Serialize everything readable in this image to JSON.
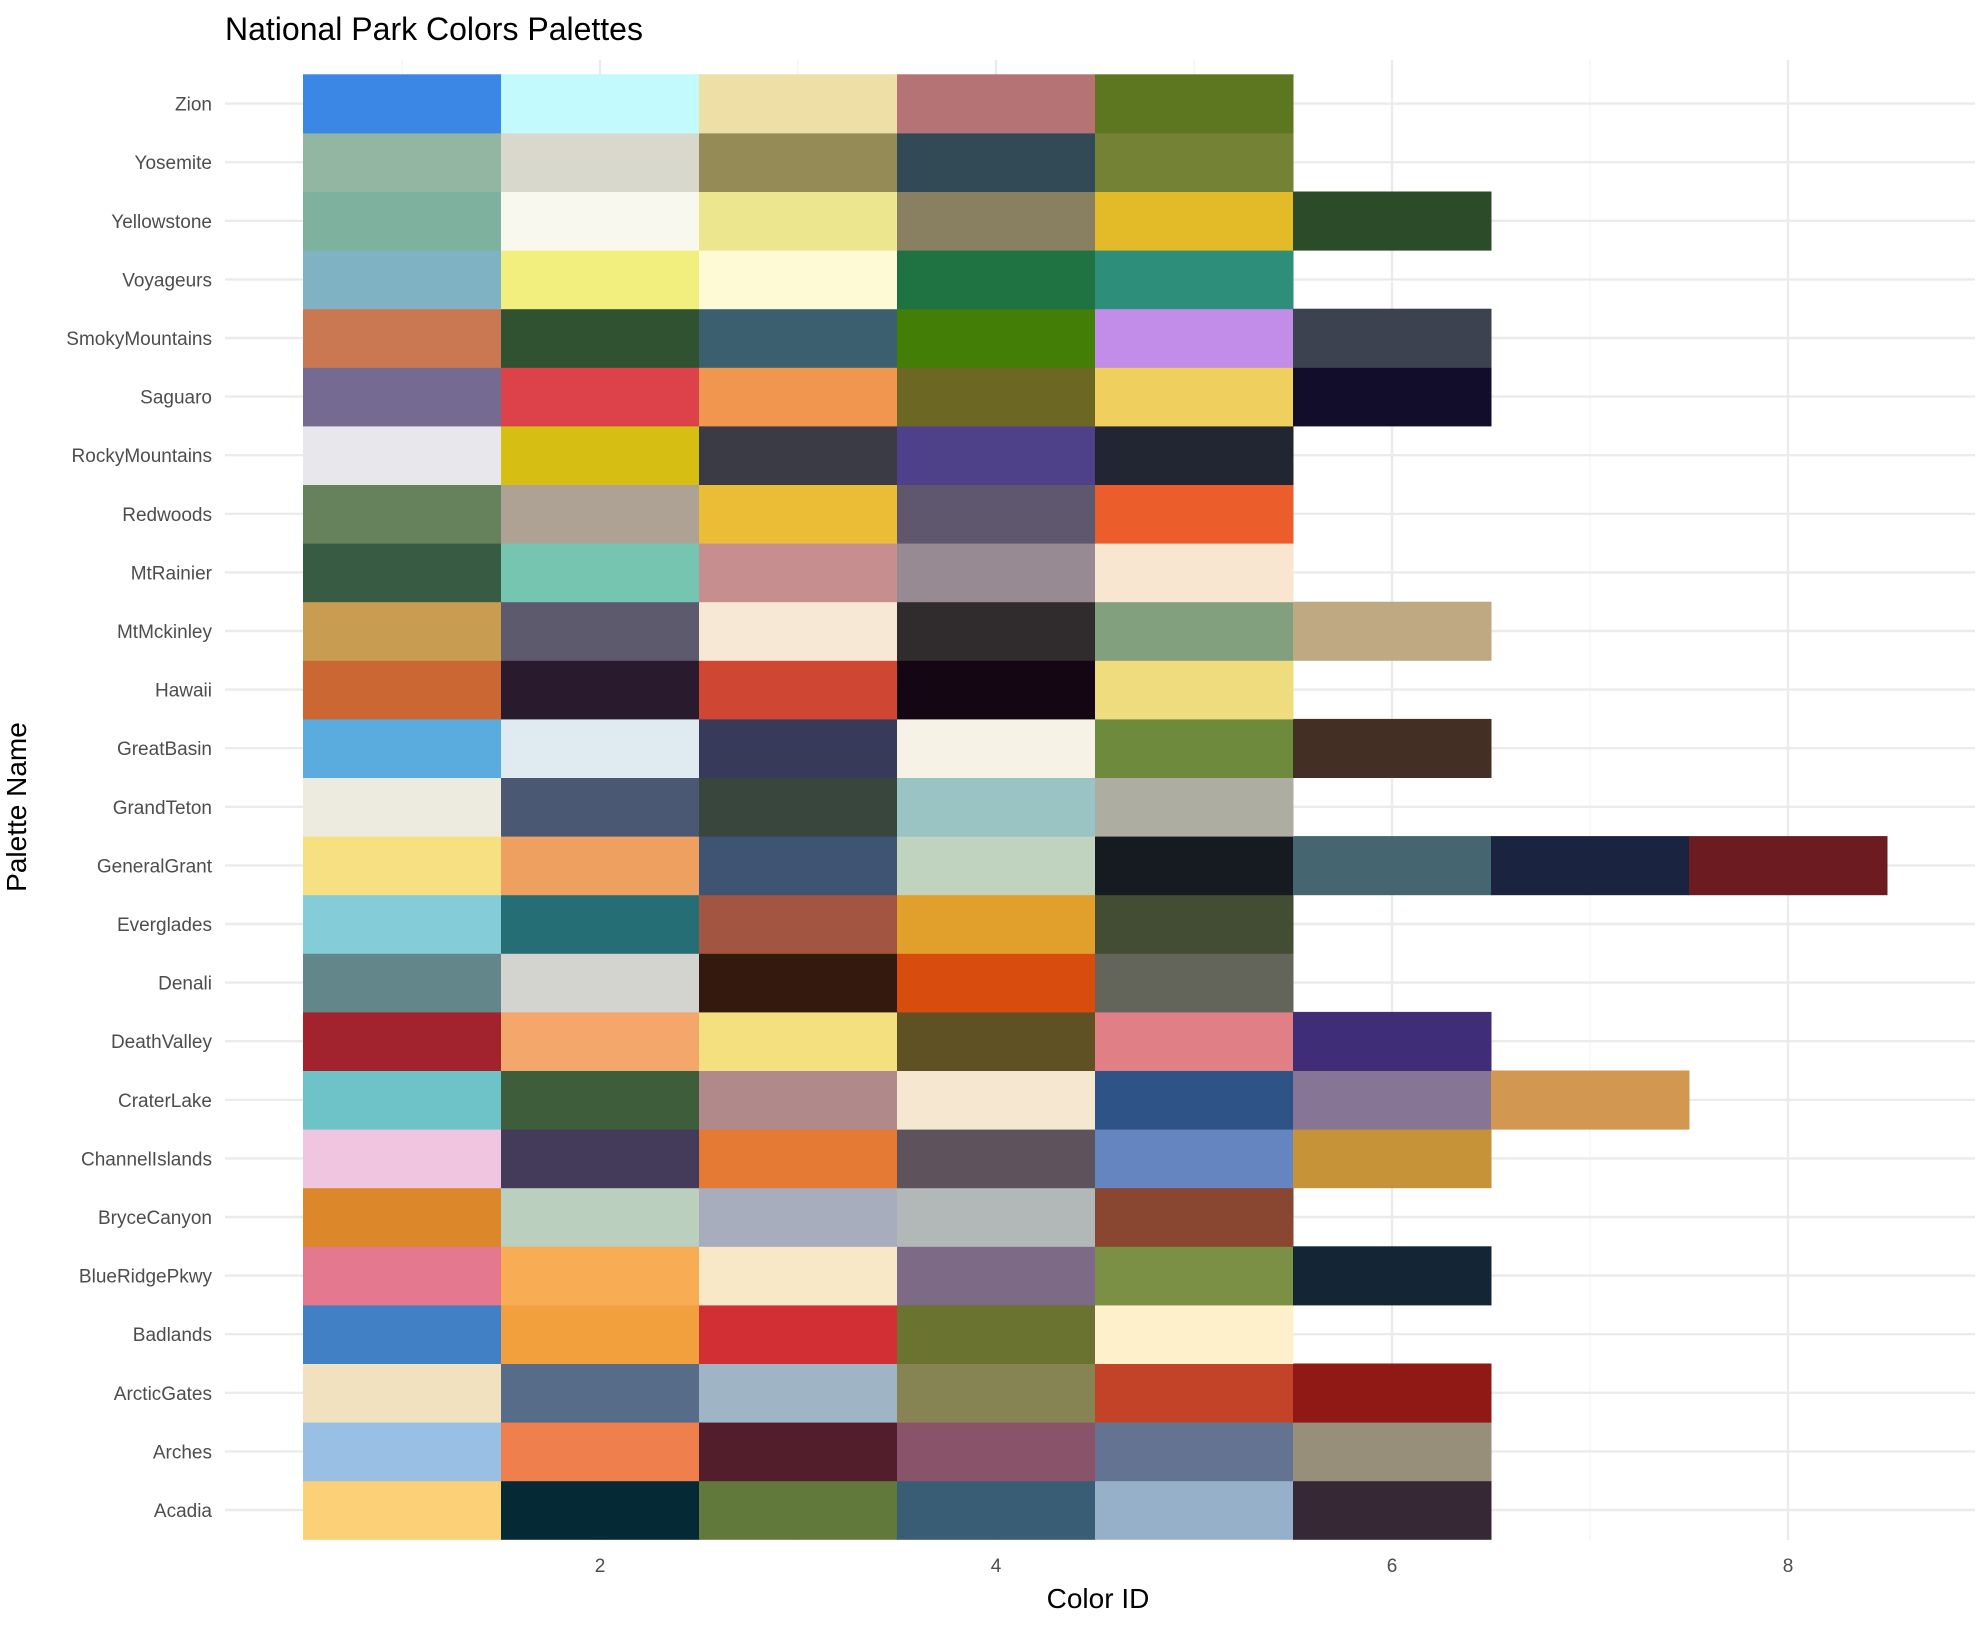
{
  "chart_data": {
    "type": "heatmap",
    "title": "National Park Colors Palettes",
    "xlabel": "Color ID",
    "ylabel": "Palette Name",
    "xlim": [
      0.5,
      8.5
    ],
    "x_ticks": [
      "2",
      "4",
      "6",
      "8"
    ],
    "grid": true,
    "legend": "none",
    "palettes": [
      {
        "name": "Acadia",
        "colors": [
          "#FCD077",
          "#062A35",
          "#617A3C",
          "#395D74",
          "#96B0CA",
          "#362834"
        ]
      },
      {
        "name": "Arches",
        "colors": [
          "#9ABFE5",
          "#EF7F4D",
          "#531E2C",
          "#895369",
          "#647391",
          "#988F7B"
        ]
      },
      {
        "name": "ArcticGates",
        "colors": [
          "#F1E1BE",
          "#566C88",
          "#9FB5C5",
          "#868452",
          "#C34329",
          "#901915"
        ]
      },
      {
        "name": "Badlands",
        "colors": [
          "#4180C4",
          "#F2A03D",
          "#D12F33",
          "#6A732F",
          "#FEF0CB"
        ]
      },
      {
        "name": "BlueRidgePkwy",
        "colors": [
          "#E4788E",
          "#F8AC53",
          "#F8E8C7",
          "#7C6A86",
          "#7B8F45",
          "#142535"
        ]
      },
      {
        "name": "BryceCanyon",
        "colors": [
          "#DD872B",
          "#BBCFBE",
          "#A8ADBE",
          "#B2B7B7",
          "#894731"
        ]
      },
      {
        "name": "ChannelIslands",
        "colors": [
          "#F0C5E0",
          "#443B5A",
          "#E47A34",
          "#5E535D",
          "#6585C0",
          "#C69339"
        ]
      },
      {
        "name": "CraterLake",
        "colors": [
          "#6EC3C9",
          "#3E5D3A",
          "#B08A8A",
          "#F5E7D0",
          "#2E5487",
          "#877595",
          "#D29852"
        ]
      },
      {
        "name": "DeathValley",
        "colors": [
          "#A2232E",
          "#F4A76B",
          "#F4E07F",
          "#5F5123",
          "#E07F85",
          "#402D77"
        ]
      },
      {
        "name": "Denali",
        "colors": [
          "#63868A",
          "#D3D4CF",
          "#34190E",
          "#D84D0D",
          "#63655A"
        ]
      },
      {
        "name": "Everglades",
        "colors": [
          "#84CCD8",
          "#266E75",
          "#A25541",
          "#E1A02C",
          "#434D33"
        ]
      },
      {
        "name": "GeneralGrant",
        "colors": [
          "#F7E081",
          "#EEA060",
          "#3F5372",
          "#C0D3BF",
          "#151B20",
          "#456570",
          "#1A2440",
          "#6C1B21"
        ]
      },
      {
        "name": "GrandTeton",
        "colors": [
          "#EDEADF",
          "#4A5874",
          "#38463D",
          "#9AC3C4",
          "#ADAEA1"
        ]
      },
      {
        "name": "GreatBasin",
        "colors": [
          "#5AABDE",
          "#DFEAF1",
          "#373A58",
          "#F6F3E6",
          "#6E8A3C",
          "#432F24"
        ]
      },
      {
        "name": "Hawaii",
        "colors": [
          "#CB6733",
          "#291A2E",
          "#CF4733",
          "#140713",
          "#EEDC7F"
        ]
      },
      {
        "name": "MtMckinley",
        "colors": [
          "#C99D51",
          "#5D5A6E",
          "#F6E8D5",
          "#302B2C",
          "#829F7E",
          "#BEA983"
        ]
      },
      {
        "name": "MtRainier",
        "colors": [
          "#375C43",
          "#75C5B1",
          "#C68E8F",
          "#978A93",
          "#F8E6D1"
        ]
      },
      {
        "name": "Redwoods",
        "colors": [
          "#65825D",
          "#AEA294",
          "#EBBD37",
          "#5E576D",
          "#EB5E2C"
        ]
      },
      {
        "name": "RockyMountains",
        "colors": [
          "#E8E7EC",
          "#D6BF12",
          "#3A3B45",
          "#4E418A",
          "#222532"
        ]
      },
      {
        "name": "Saguaro",
        "colors": [
          "#756A92",
          "#DD414A",
          "#F0964F",
          "#6C6722",
          "#EFD05E",
          "#130D2C"
        ]
      },
      {
        "name": "SmokyMountains",
        "colors": [
          "#CA7851",
          "#305230",
          "#3C5F70",
          "#437F06",
          "#C28DE8",
          "#3C424F"
        ]
      },
      {
        "name": "Voyageurs",
        "colors": [
          "#7FB3C3",
          "#F3EF7F",
          "#FDFAD5",
          "#1F7241",
          "#2D8F7A"
        ]
      },
      {
        "name": "Yellowstone",
        "colors": [
          "#7EB19E",
          "#F8F8EF",
          "#ECE78E",
          "#898061",
          "#E3BB29",
          "#2C4B29"
        ]
      },
      {
        "name": "Yosemite",
        "colors": [
          "#92B6A1",
          "#D8D9CC",
          "#948B57",
          "#314A55",
          "#748235"
        ]
      },
      {
        "name": "Zion",
        "colors": [
          "#3A87E6",
          "#C2FAFE",
          "#EDDFA6",
          "#B57375",
          "#5C7720"
        ]
      }
    ]
  }
}
